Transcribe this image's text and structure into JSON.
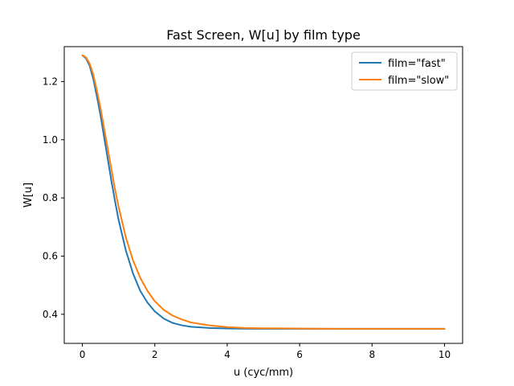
{
  "chart_data": {
    "type": "line",
    "title": "Fast Screen, W[u] by film type",
    "xlabel": "u (cyc/mm)",
    "ylabel": "W[u]",
    "xlim": [
      -0.5,
      10.5
    ],
    "ylim": [
      0.3,
      1.32
    ],
    "xticks": [
      0,
      2,
      4,
      6,
      8,
      10
    ],
    "yticks": [
      0.4,
      0.6,
      0.8,
      1.0,
      1.2
    ],
    "ytick_labels": [
      "0.4",
      "0.6",
      "0.8",
      "1.0",
      "1.2"
    ],
    "grid": false,
    "legend_position": "top-right",
    "series": [
      {
        "name": "film=\"fast\"",
        "color": "#1f77b4",
        "x": [
          0,
          0.1,
          0.2,
          0.3,
          0.4,
          0.5,
          0.6,
          0.7,
          0.8,
          0.9,
          1.0,
          1.2,
          1.4,
          1.6,
          1.8,
          2.0,
          2.25,
          2.5,
          2.75,
          3.0,
          3.5,
          4.0,
          4.5,
          5.0,
          6.0,
          7.0,
          8.0,
          9.0,
          10.0
        ],
        "y": [
          1.29,
          1.28,
          1.255,
          1.21,
          1.15,
          1.085,
          1.01,
          0.935,
          0.86,
          0.79,
          0.725,
          0.62,
          0.54,
          0.48,
          0.44,
          0.41,
          0.385,
          0.37,
          0.362,
          0.357,
          0.353,
          0.351,
          0.3505,
          0.35,
          0.35,
          0.35,
          0.35,
          0.35,
          0.35
        ]
      },
      {
        "name": "film=\"slow\"",
        "color": "#ff7f0e",
        "x": [
          0,
          0.1,
          0.2,
          0.3,
          0.4,
          0.5,
          0.6,
          0.7,
          0.8,
          0.9,
          1.0,
          1.2,
          1.4,
          1.6,
          1.8,
          2.0,
          2.25,
          2.5,
          2.75,
          3.0,
          3.5,
          4.0,
          4.5,
          5.0,
          6.0,
          7.0,
          8.0,
          9.0,
          10.0
        ],
        "y": [
          1.29,
          1.283,
          1.262,
          1.225,
          1.17,
          1.11,
          1.04,
          0.97,
          0.9,
          0.83,
          0.77,
          0.665,
          0.585,
          0.525,
          0.48,
          0.445,
          0.415,
          0.395,
          0.382,
          0.372,
          0.362,
          0.356,
          0.353,
          0.352,
          0.351,
          0.35,
          0.35,
          0.35,
          0.35
        ]
      }
    ]
  }
}
